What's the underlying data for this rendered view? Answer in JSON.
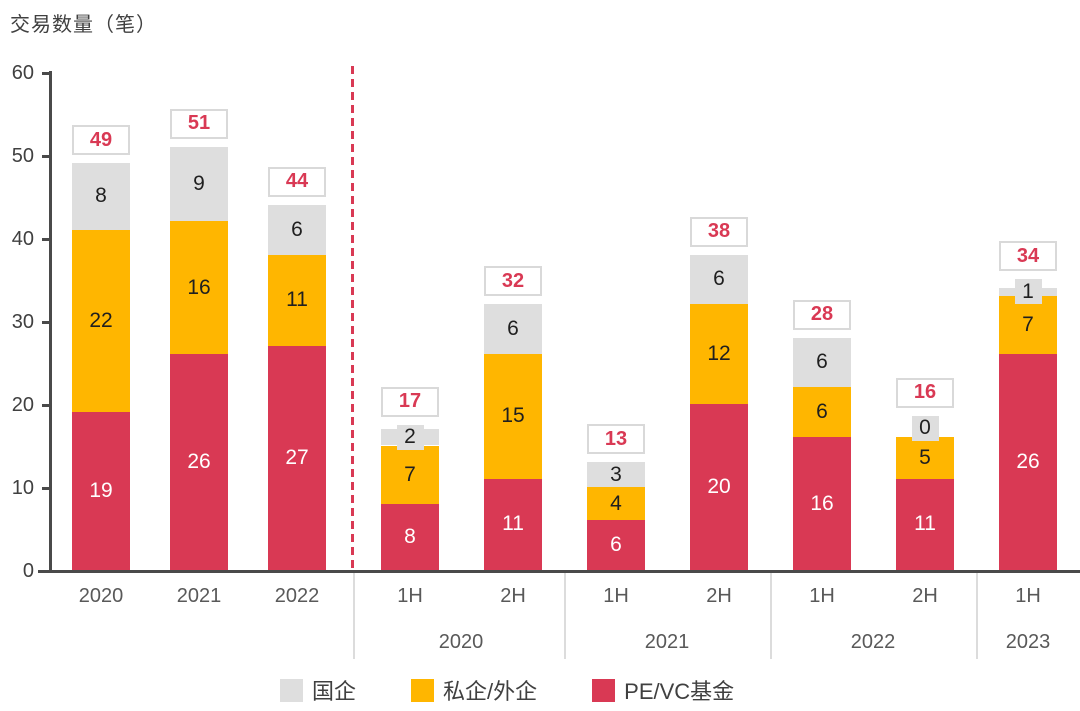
{
  "title": "交易数量（笔）",
  "colors": {
    "pevc": "#D93954",
    "private": "#FFB600",
    "soe": "#DEDEDE",
    "axis": "#4a4a4a",
    "tick_text": "#404040",
    "x_text": "#595959",
    "total_text": "#D93954",
    "total_box_border": "#D9D9D9",
    "separator": "#DCDCDC",
    "dashed_divider": "#D93954"
  },
  "y_axis": {
    "tick_values": [
      0,
      10,
      20,
      30,
      40,
      50,
      60
    ]
  },
  "x_axis": {
    "tick_labels": [
      "2020",
      "2021",
      "2022",
      "1H",
      "2H",
      "1H",
      "2H",
      "1H",
      "2H",
      "1H"
    ],
    "group_labels": [
      "2020",
      "2021",
      "2022",
      "2023"
    ]
  },
  "legend": [
    {
      "name": "国企",
      "color": "#DEDEDE"
    },
    {
      "name": "私企/外企",
      "color": "#FFB600"
    },
    {
      "name": "PE/VC基金",
      "color": "#D93954"
    }
  ],
  "chart_data": {
    "type": "bar",
    "stacked": true,
    "title": "交易数量（笔）",
    "ylabel": "交易数量（笔）",
    "ylim": [
      0,
      60
    ],
    "y_ticks": [
      0,
      10,
      20,
      30,
      40,
      50,
      60
    ],
    "grid": false,
    "legend_position": "bottom",
    "categories": [
      "2020",
      "2021",
      "2022",
      "2020-1H",
      "2020-2H",
      "2021-1H",
      "2021-2H",
      "2022-1H",
      "2022-2H",
      "2023-1H"
    ],
    "series": [
      {
        "name": "PE/VC基金",
        "key": "pevc",
        "color": "#D93954",
        "text_color": "#ffffff",
        "values": [
          19,
          26,
          27,
          8,
          11,
          6,
          20,
          16,
          11,
          26
        ]
      },
      {
        "name": "私企/外企",
        "key": "private",
        "color": "#FFB600",
        "text_color": "#1f1f1f",
        "values": [
          22,
          16,
          11,
          7,
          15,
          4,
          12,
          6,
          5,
          7
        ]
      },
      {
        "name": "国企",
        "key": "soe",
        "color": "#DEDEDE",
        "text_color": "#1f1f1f",
        "values": [
          8,
          9,
          6,
          2,
          6,
          3,
          6,
          6,
          0,
          1
        ]
      }
    ],
    "totals": [
      49,
      51,
      44,
      17,
      32,
      13,
      38,
      28,
      16,
      34
    ],
    "annotations": {
      "dashed_divider_after_index": 2
    }
  }
}
